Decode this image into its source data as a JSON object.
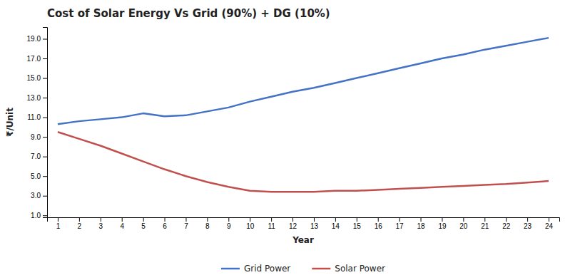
{
  "chart_data": {
    "type": "line",
    "title": "Cost of Solar Energy Vs Grid (90%) + DG (10%)",
    "x_label": "Year",
    "y_label": "₹/Unit",
    "x": [
      1,
      2,
      3,
      4,
      5,
      6,
      7,
      8,
      9,
      10,
      11,
      12,
      13,
      14,
      15,
      16,
      17,
      18,
      19,
      20,
      21,
      22,
      23,
      24
    ],
    "series": [
      {
        "name": "Grid Power",
        "color": "#4472C4",
        "values": [
          10.3,
          10.6,
          10.8,
          11.0,
          11.4,
          11.1,
          11.2,
          11.6,
          12.0,
          12.6,
          13.1,
          13.6,
          14.0,
          14.5,
          15.0,
          15.5,
          16.0,
          16.5,
          17.0,
          17.4,
          17.9,
          18.3,
          18.7,
          19.1
        ]
      },
      {
        "name": "Solar Power",
        "color": "#C0504D",
        "values": [
          9.5,
          8.8,
          8.1,
          7.3,
          6.5,
          5.7,
          5.0,
          4.4,
          3.9,
          3.5,
          3.4,
          3.4,
          3.4,
          3.5,
          3.5,
          3.6,
          3.7,
          3.8,
          3.9,
          4.0,
          4.1,
          4.2,
          4.35,
          4.5
        ]
      }
    ],
    "xlim": [
      0.5,
      24.5
    ],
    "xticks": [
      1,
      2,
      3,
      4,
      5,
      6,
      7,
      8,
      9,
      10,
      11,
      12,
      13,
      14,
      15,
      16,
      17,
      18,
      19,
      20,
      21,
      22,
      23,
      24
    ],
    "ylim": [
      0.8,
      20.2
    ],
    "yticks": [
      {
        "value": 1.0,
        "label": "1.0"
      },
      {
        "value": 3.0,
        "label": "3.0"
      },
      {
        "value": 5.0,
        "label": "5.0"
      },
      {
        "value": 7.0,
        "label": "7.0"
      },
      {
        "value": 9.0,
        "label": "9.0"
      },
      {
        "value": 11.0,
        "label": "11.0"
      },
      {
        "value": 13.0,
        "label": "13.0"
      },
      {
        "value": 15.0,
        "label": "15.0"
      },
      {
        "value": 17.0,
        "label": "17.0"
      },
      {
        "value": 19.0,
        "label": "19.0"
      }
    ],
    "grid": false,
    "legend": "bottom"
  }
}
